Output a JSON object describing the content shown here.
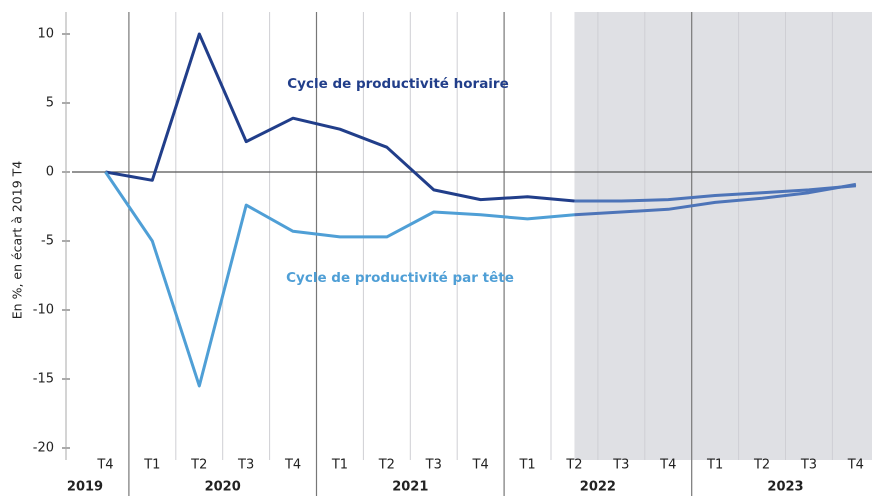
{
  "chart_data": {
    "type": "line",
    "y_label": "En %, en écart à 2019 T4",
    "categories": [
      "T4",
      "T1",
      "T2",
      "T3",
      "T4",
      "T1",
      "T2",
      "T3",
      "T4",
      "T1",
      "T2",
      "T3",
      "T4",
      "T1",
      "T2",
      "T3",
      "T4"
    ],
    "years": [
      {
        "label": "2019",
        "span": 1
      },
      {
        "label": "2020",
        "span": 4
      },
      {
        "label": "2021",
        "span": 4
      },
      {
        "label": "2022",
        "span": 4
      },
      {
        "label": "2023",
        "span": 4
      }
    ],
    "forecast_start": 10,
    "forecast_color": "#4d74b8",
    "shade_color": "#dfe0e4",
    "series": [
      {
        "name": "Cycle de productivité horaire",
        "color": "#213e8a",
        "values": [
          0,
          -0.6,
          10,
          2.2,
          3.9,
          3.1,
          1.8,
          -1.3,
          -2.0,
          -1.8,
          -2.1,
          -2.1,
          -2.0,
          -1.7,
          -1.5,
          -1.3,
          -1.0
        ]
      },
      {
        "name": "Cycle de productivité par tête",
        "color": "#4f9fd6",
        "values": [
          0,
          -5.0,
          -15.5,
          -2.4,
          -4.3,
          -4.7,
          -4.7,
          -2.9,
          -3.1,
          -3.4,
          -3.1,
          -2.9,
          -2.7,
          -2.2,
          -1.9,
          -1.5,
          -0.9
        ]
      }
    ],
    "ylim": [
      -20,
      10
    ],
    "yticks": [
      10,
      5,
      0,
      -5,
      -10,
      -15,
      -20
    ]
  }
}
